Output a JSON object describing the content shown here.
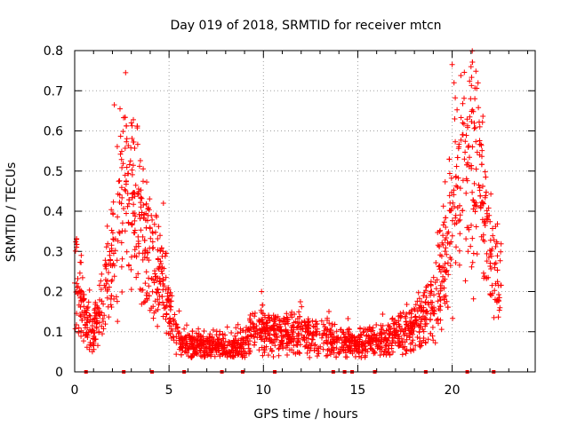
{
  "chart_data": {
    "type": "scatter",
    "title": "Day 019 of 2018, SRMTID for receiver mtcn",
    "xlabel": "GPS time / hours",
    "ylabel": "SRMTID / TECUs",
    "xlim": [
      0,
      24.4
    ],
    "ylim": [
      0,
      0.8
    ],
    "x_ticks": [
      0,
      5,
      10,
      15,
      20
    ],
    "y_ticks": [
      0,
      0.1,
      0.2,
      0.3,
      0.4,
      0.5,
      0.6,
      0.7,
      0.8
    ],
    "x_tick_labels": [
      "0",
      "5",
      "10",
      "15",
      "20"
    ],
    "y_tick_labels": [
      "0",
      "0.1",
      "0.2",
      "0.3",
      "0.4",
      "0.5",
      "0.6",
      "0.7",
      "0.8"
    ],
    "grid": true,
    "marker": "plus",
    "color": "#ff0000",
    "envelope": {
      "x": [
        0.0,
        0.3,
        0.6,
        1.0,
        1.4,
        1.8,
        2.1,
        2.4,
        2.7,
        3.0,
        3.3,
        3.6,
        4.0,
        4.4,
        4.8,
        5.2,
        5.6,
        6.0,
        7.0,
        8.0,
        9.0,
        9.5,
        10.0,
        11.0,
        12.0,
        13.0,
        14.0,
        15.0,
        16.0,
        17.0,
        18.0,
        18.5,
        19.0,
        19.5,
        20.0,
        20.5,
        21.0,
        21.5,
        22.0,
        22.5
      ],
      "y": [
        0.26,
        0.18,
        0.12,
        0.1,
        0.16,
        0.24,
        0.32,
        0.42,
        0.46,
        0.44,
        0.4,
        0.36,
        0.3,
        0.24,
        0.19,
        0.12,
        0.08,
        0.07,
        0.065,
        0.06,
        0.07,
        0.1,
        0.1,
        0.09,
        0.1,
        0.09,
        0.08,
        0.07,
        0.075,
        0.09,
        0.11,
        0.13,
        0.16,
        0.26,
        0.4,
        0.5,
        0.54,
        0.48,
        0.3,
        0.22
      ]
    },
    "highlighted_points": [
      {
        "x": 2.7,
        "y": 0.745
      },
      {
        "x": 2.1,
        "y": 0.665
      },
      {
        "x": 2.4,
        "y": 0.655
      },
      {
        "x": 3.0,
        "y": 0.62
      },
      {
        "x": 20.0,
        "y": 0.765
      },
      {
        "x": 21.0,
        "y": 0.76
      },
      {
        "x": 20.1,
        "y": 0.72
      },
      {
        "x": 21.2,
        "y": 0.68
      },
      {
        "x": 4.7,
        "y": 0.42
      },
      {
        "x": 9.9,
        "y": 0.2
      }
    ],
    "gap_markers_x": [
      0.6,
      2.6,
      4.1,
      5.8,
      7.8,
      8.9,
      10.6,
      13.7,
      14.3,
      14.7,
      15.9,
      18.6,
      20.8,
      22.2
    ],
    "n_points": 2200,
    "time_span_hours": [
      0.0,
      22.6
    ]
  }
}
